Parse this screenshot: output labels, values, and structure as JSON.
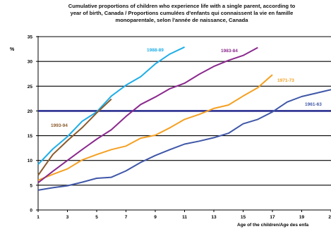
{
  "chart_data": {
    "type": "line",
    "title": "Cumulative proportions of children who experience life with a single parent, according to year of birth, Canada / Proportions cumulées d'enfants qui connaissent la vie en famille monoparentale, selon l'année de naissance, Canada",
    "title_lines": [
      "Cumulative proportions of children who experience life with a single parent, according to",
      "year of birth, Canada / Proportions cumulées d'enfants qui connaissent la vie en famille",
      "monoparentale, selon l'année de naissance, Canada"
    ],
    "ylabel": "%",
    "xlabel": "Age of the children/Age des enfa",
    "xlim": [
      1,
      21
    ],
    "ylim": [
      0,
      35
    ],
    "xticks": [
      1,
      3,
      5,
      7,
      9,
      11,
      13,
      15,
      17,
      19,
      21
    ],
    "yticks": [
      0,
      5,
      10,
      15,
      20,
      25,
      30,
      35
    ],
    "grid": true,
    "reference_line": 20,
    "series": [
      {
        "name": "1961-63",
        "color": "#3f57a8",
        "x": [
          1,
          2,
          3,
          4,
          5,
          6,
          7,
          8,
          9,
          10,
          11,
          12,
          13,
          14,
          15,
          16,
          17,
          18,
          19,
          20,
          21
        ],
        "values": [
          4.0,
          4.5,
          4.9,
          5.6,
          6.4,
          6.6,
          7.9,
          9.6,
          11.0,
          12.2,
          13.3,
          13.9,
          14.6,
          15.5,
          17.4,
          18.3,
          19.8,
          21.8,
          22.9,
          23.6,
          24.3
        ]
      },
      {
        "name": "1971-73",
        "color": "#f5a021",
        "x": [
          1,
          2,
          3,
          4,
          5,
          6,
          7,
          8,
          9,
          10,
          11,
          12,
          13,
          14,
          15,
          16,
          17
        ],
        "values": [
          6.0,
          7.2,
          8.3,
          10.1,
          11.2,
          12.2,
          12.9,
          14.5,
          15.1,
          16.6,
          18.3,
          19.3,
          20.5,
          21.2,
          23.0,
          24.7,
          27.3
        ]
      },
      {
        "name": "1983-84",
        "color": "#8b2a8e",
        "x": [
          1,
          2,
          3,
          4,
          5,
          6,
          7,
          8,
          9,
          10,
          11,
          12,
          13,
          14,
          15,
          16
        ],
        "values": [
          5.5,
          7.8,
          10.0,
          12.2,
          14.3,
          16.2,
          18.9,
          21.3,
          22.8,
          24.5,
          25.6,
          27.4,
          29.0,
          30.2,
          31.2,
          32.8
        ]
      },
      {
        "name": "1988-89",
        "color": "#1eaee8",
        "x": [
          1,
          2,
          3,
          4,
          5,
          6,
          7,
          8,
          9,
          10,
          11
        ],
        "values": [
          9.2,
          12.3,
          14.8,
          17.9,
          19.8,
          23.0,
          25.2,
          26.9,
          29.5,
          31.5,
          32.9
        ]
      },
      {
        "name": "1993-94",
        "color": "#8b5a2b",
        "x": [
          1,
          2,
          3,
          4,
          5,
          6
        ],
        "values": [
          7.0,
          11.2,
          14.0,
          16.6,
          19.6,
          22.4
        ]
      }
    ]
  }
}
